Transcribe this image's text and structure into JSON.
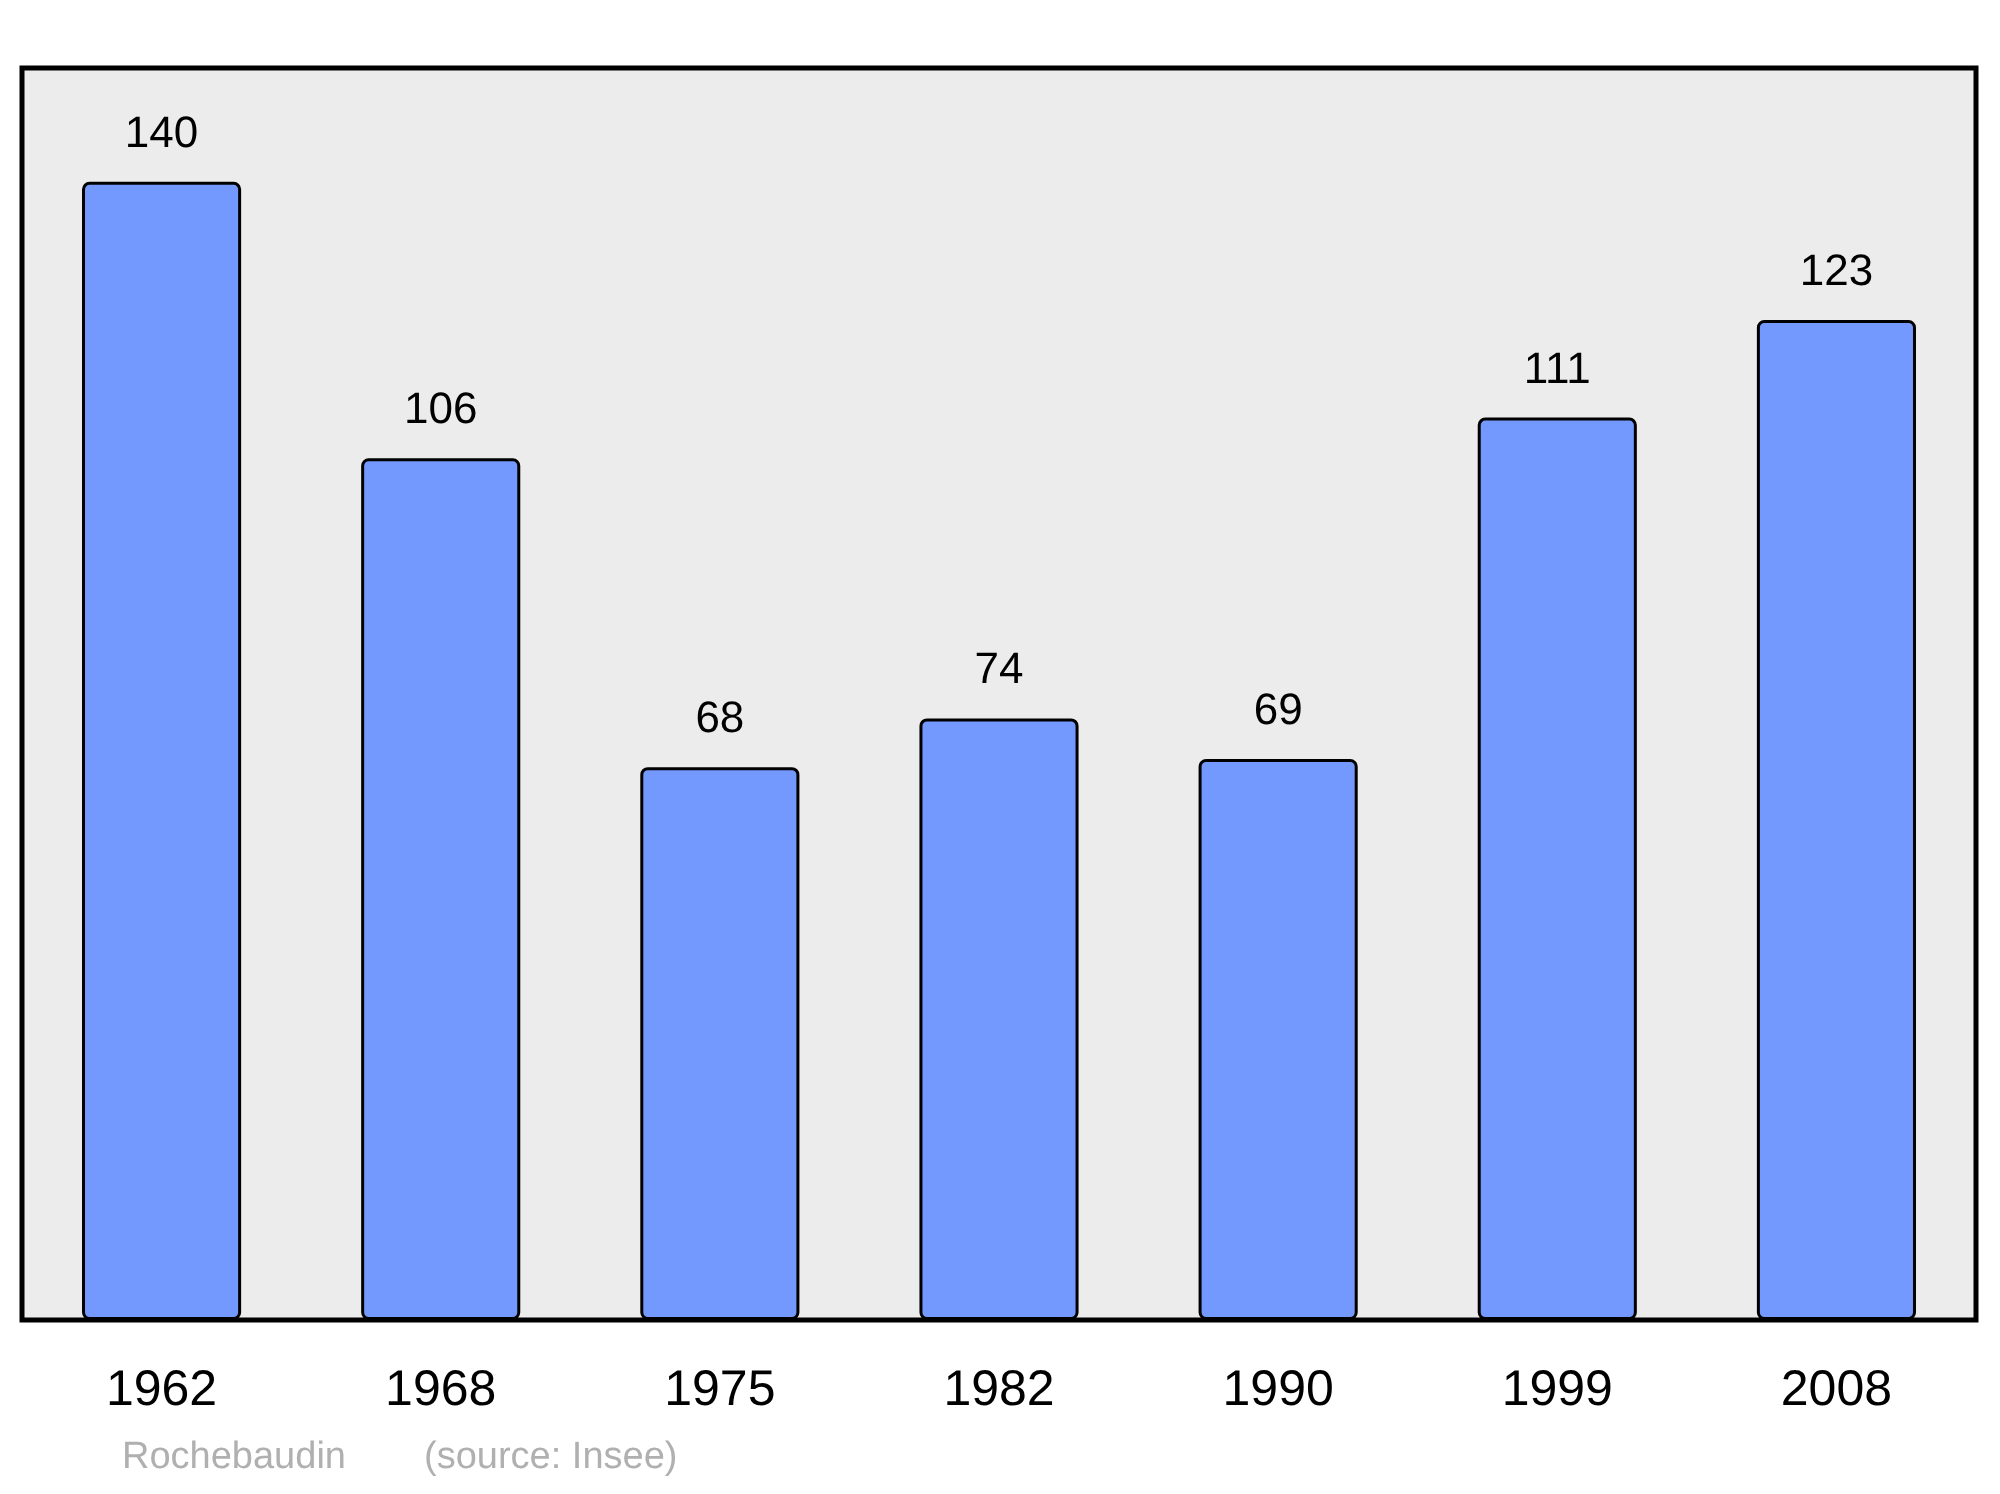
{
  "chart_data": {
    "type": "bar",
    "categories": [
      "1962",
      "1968",
      "1975",
      "1982",
      "1990",
      "1999",
      "2008"
    ],
    "values": [
      140,
      106,
      68,
      74,
      69,
      111,
      123
    ],
    "color": "#7399ff",
    "data_labels": true,
    "grid": false,
    "annotations": [
      "Rochebaudin",
      "(source: Insee)"
    ]
  }
}
